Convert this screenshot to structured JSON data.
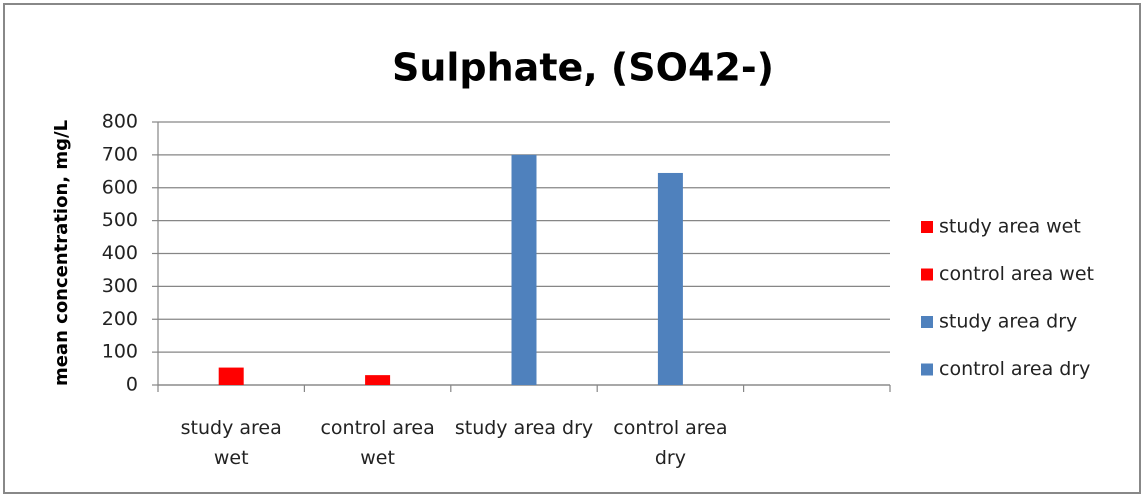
{
  "chart_data": {
    "type": "bar",
    "title": "Sulphate, (SO42-)",
    "y_label": "mean concentration, mg/L",
    "categories": [
      "study area wet",
      "control area wet",
      "study area dry",
      "control area dry",
      null
    ],
    "series": [
      {
        "name": "study area wet",
        "color": "#ff0000",
        "values": [
          53,
          null,
          null,
          null,
          null
        ]
      },
      {
        "name": "control area wet",
        "color": "#ff0000",
        "values": [
          null,
          30,
          null,
          null,
          null
        ]
      },
      {
        "name": "study area dry",
        "color": "#4f81bd",
        "values": [
          null,
          null,
          700,
          null,
          null
        ]
      },
      {
        "name": "control area dry",
        "color": "#4f81bd",
        "values": [
          null,
          null,
          null,
          645,
          null
        ]
      }
    ],
    "ylim": [
      0,
      800
    ],
    "yticks": [
      0,
      100,
      200,
      300,
      400,
      500,
      600,
      700,
      800
    ],
    "grid": true,
    "legend": "right"
  }
}
